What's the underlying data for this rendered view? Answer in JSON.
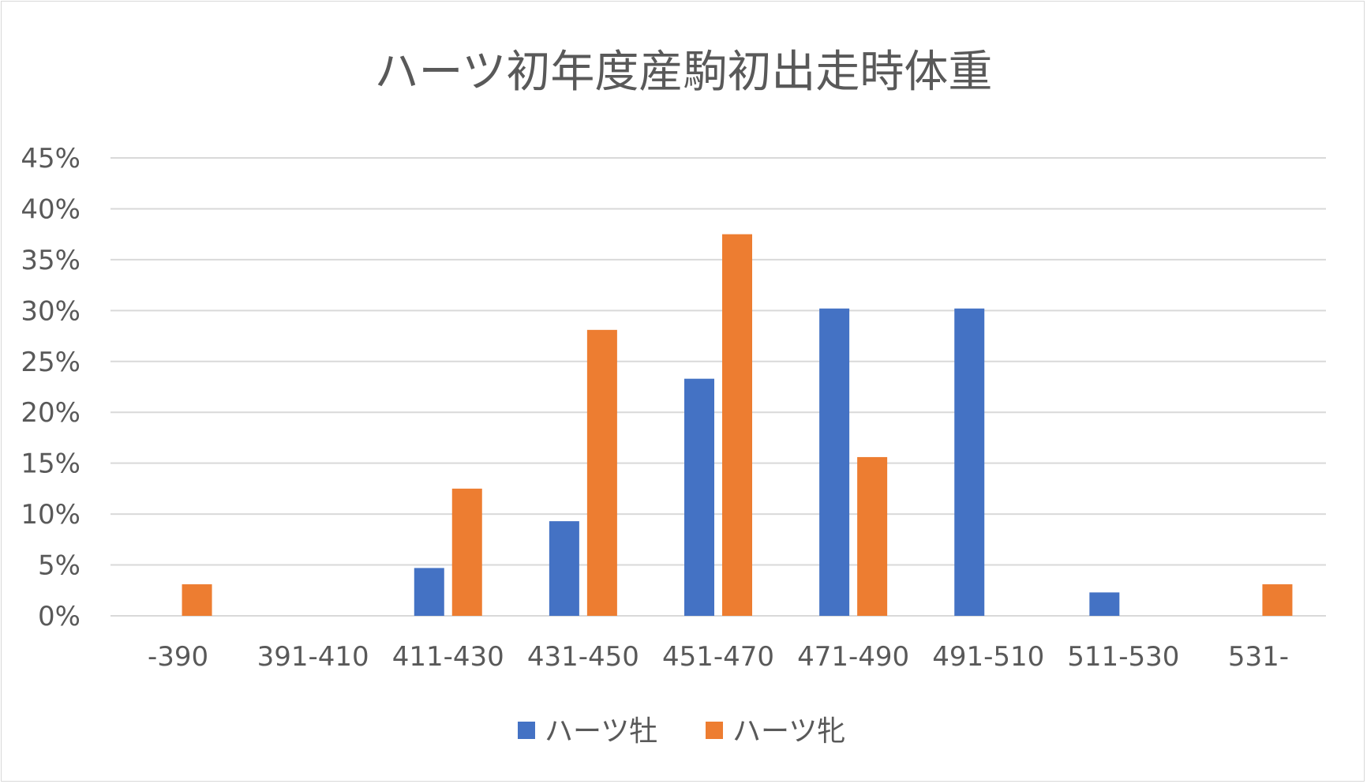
{
  "chart_data": {
    "type": "bar",
    "title": "ハーツ初年度産駒初出走時体重",
    "xlabel": "",
    "ylabel": "",
    "categories": [
      "-390",
      "391-410",
      "411-430",
      "431-450",
      "451-470",
      "471-490",
      "491-510",
      "511-530",
      "531-"
    ],
    "series": [
      {
        "name": "ハーツ牡",
        "color": "#4472C4",
        "values": [
          0,
          0,
          4.7,
          9.3,
          23.3,
          30.2,
          30.2,
          2.3,
          0
        ]
      },
      {
        "name": "ハーツ牝",
        "color": "#ED7D31",
        "values": [
          3.1,
          0,
          12.5,
          28.1,
          37.5,
          15.6,
          0,
          0,
          3.1
        ]
      }
    ],
    "ylim": [
      0,
      45
    ],
    "y_ticks": [
      0,
      5,
      10,
      15,
      20,
      25,
      30,
      35,
      40,
      45
    ],
    "y_tick_labels": [
      "0%",
      "5%",
      "10%",
      "15%",
      "20%",
      "25%",
      "30%",
      "35%",
      "40%",
      "45%"
    ],
    "grid": true,
    "legend_position": "bottom"
  }
}
